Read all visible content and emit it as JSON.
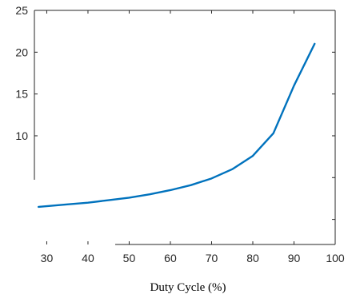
{
  "chart_data": {
    "type": "line",
    "title": "",
    "xlabel": "Duty Cycle (%)",
    "ylabel": "",
    "xlim": [
      27,
      100
    ],
    "ylim": [
      -3,
      25
    ],
    "grid": false,
    "x_ticks": [
      30,
      40,
      50,
      60,
      70,
      80,
      90,
      100
    ],
    "y_ticks": [
      10,
      15,
      20,
      25
    ],
    "series": [
      {
        "color": "#0072BD",
        "x": [
          28,
          35,
          40,
          45,
          50,
          55,
          60,
          65,
          70,
          75,
          80,
          85,
          90,
          95
        ],
        "y": [
          1.5,
          1.8,
          2.0,
          2.3,
          2.6,
          3.0,
          3.5,
          4.1,
          4.9,
          6.0,
          7.6,
          10.3,
          16.0,
          21.0
        ]
      }
    ]
  },
  "colors": {
    "axis": "#262626",
    "background": "#ffffff"
  }
}
